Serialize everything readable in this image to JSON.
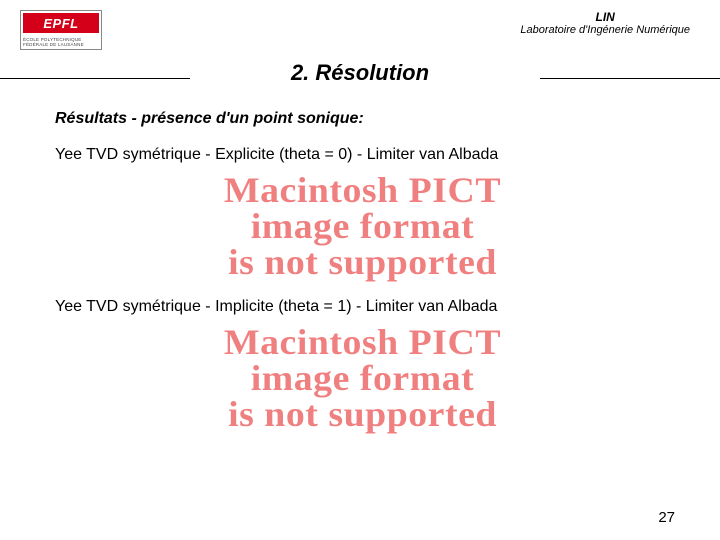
{
  "header": {
    "logo": {
      "text": "EPFL",
      "subtext": "ÉCOLE POLYTECHNIQUE\nFÉDÉRALE DE LAUSANNE"
    },
    "lin": "LIN",
    "lin_sub": "Laboratoire d'Ingénerie Numérique"
  },
  "title": "2. Résolution",
  "subtitle": "Résultats - présence d'un point sonique:",
  "method1": "Yee TVD  symétrique - Explicite (theta = 0) - Limiter van Albada",
  "method2": "Yee TVD  symétrique - Implicite (theta = 1) - Limiter van Albada",
  "pict": {
    "line1": "Macintosh PICT",
    "line2": "image format",
    "line3": "is not supported",
    "color": "#f08080"
  },
  "page_number": "27"
}
